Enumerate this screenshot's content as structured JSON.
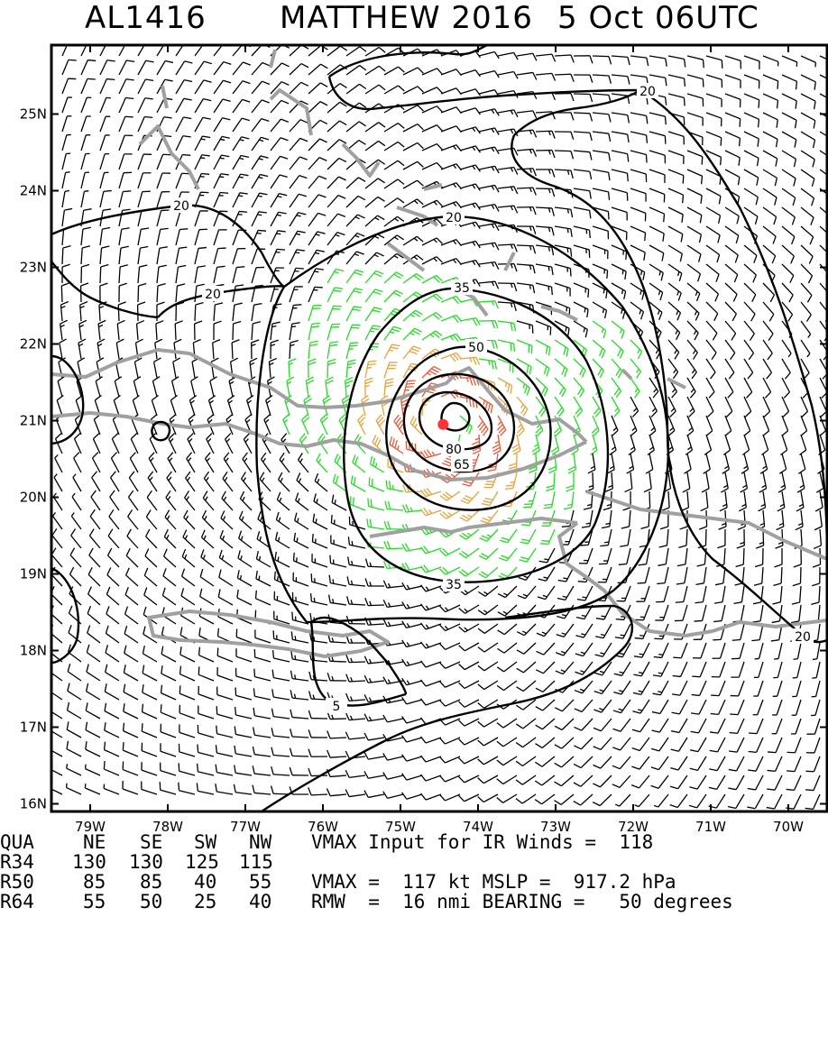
{
  "title": {
    "storm_id": "AL1416",
    "storm_name_year": "MATTHEW 2016",
    "datetime": "5 Oct 06UTC"
  },
  "map": {
    "lon_labels": [
      "79W",
      "78W",
      "77W",
      "76W",
      "75W",
      "74W",
      "73W",
      "72W",
      "71W",
      "70W"
    ],
    "lat_labels": [
      "25N",
      "24N",
      "23N",
      "22N",
      "21N",
      "20N",
      "19N",
      "18N",
      "17N",
      "16N"
    ],
    "lon_range": [
      -79.5,
      -69.5
    ],
    "lat_range": [
      15.9,
      25.9
    ],
    "contour_labels": [
      "5",
      "20",
      "20",
      "20",
      "20",
      "20",
      "35",
      "35",
      "50",
      "65",
      "80"
    ],
    "storm_center": {
      "lon": -74.45,
      "lat": 20.95
    },
    "colors": {
      "coast": "#a0a0a0",
      "contour": "#000000",
      "barb_weak": "#000000",
      "barb_34": "#22dd22",
      "barb_50": "#e8a23a",
      "barb_64": "#ee5533",
      "center": "#ff3333"
    }
  },
  "table": {
    "headers": [
      "QUA",
      "NE",
      "SE",
      "SW",
      "NW"
    ],
    "rows": [
      [
        "R34",
        "130",
        "130",
        "125",
        "115"
      ],
      [
        "R50",
        "85",
        "85",
        "40",
        "55"
      ],
      [
        "R64",
        "55",
        "50",
        "25",
        "40"
      ]
    ]
  },
  "info": {
    "vmax_input": "VMAX Input for IR Winds =  118",
    "vmax_mslp": "VMAX =  117 kt MSLP =  917.2 hPa",
    "rmw_bearing": "RMW  =  16 nmi BEARING =   50 degrees"
  }
}
